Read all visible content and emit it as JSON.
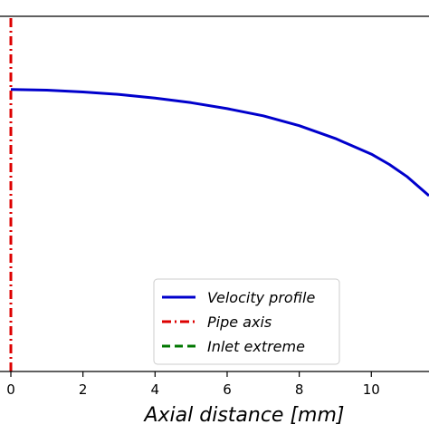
{
  "chart_data": {
    "type": "line",
    "title": "",
    "xlabel_main": "Axial distance [",
    "xlabel_unit": "mm",
    "xlabel_close": "]",
    "ylabel": "",
    "xlim": [
      0,
      11.6
    ],
    "xticks": [
      0,
      2,
      4,
      6,
      8,
      10
    ],
    "xtick_labels": [
      "0",
      "2",
      "4",
      "6",
      "8",
      "10"
    ],
    "ylim": [
      0,
      1
    ],
    "grid": false,
    "legend_position": "bottom-center",
    "series": [
      {
        "name": "Velocity profile",
        "style": "solid",
        "color": "#0000cc",
        "x": [
          0,
          1,
          2,
          3,
          4,
          5,
          6,
          7,
          8,
          9,
          10,
          10.5,
          11,
          11.6
        ],
        "y": [
          0.794,
          0.792,
          0.787,
          0.78,
          0.77,
          0.757,
          0.74,
          0.72,
          0.692,
          0.656,
          0.612,
          0.583,
          0.548,
          0.495
        ]
      },
      {
        "name": "Pipe axis",
        "style": "dashdot",
        "color": "#dd0000",
        "x": [
          0,
          0
        ],
        "y": [
          0,
          1
        ]
      },
      {
        "name": "Inlet extreme",
        "style": "dashed",
        "color": "#007700",
        "x": [],
        "y": []
      }
    ]
  }
}
